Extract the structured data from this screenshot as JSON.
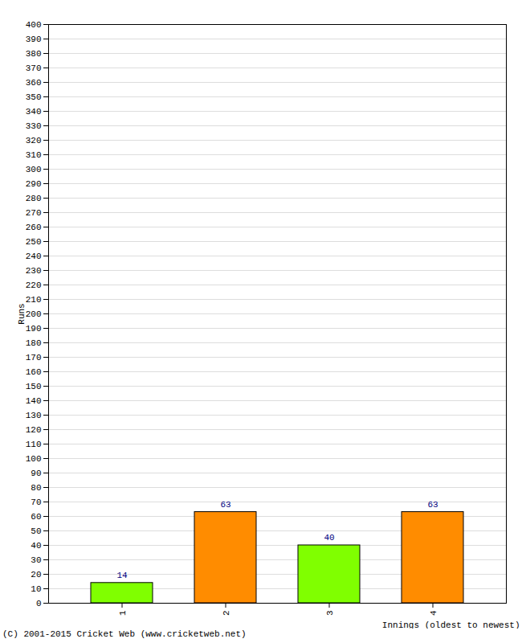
{
  "chart_data": {
    "type": "bar",
    "categories": [
      "1",
      "2",
      "3",
      "4"
    ],
    "values": [
      14,
      63,
      40,
      63
    ],
    "colors": [
      "#80ff00",
      "#ff8c00",
      "#80ff00",
      "#ff8c00"
    ],
    "x_label": "Innings (oldest to newest)",
    "y_label": "Runs",
    "caption": "(C) 2001-2015 Cricket Web (www.cricketweb.net)",
    "ylim": [
      0,
      400
    ],
    "yticks": [
      0,
      10,
      20,
      30,
      40,
      50,
      60,
      70,
      80,
      90,
      100,
      110,
      120,
      130,
      140,
      150,
      160,
      170,
      180,
      190,
      200,
      210,
      220,
      230,
      240,
      250,
      260,
      270,
      280,
      290,
      300,
      310,
      320,
      330,
      340,
      350,
      360,
      370,
      380,
      390,
      400
    ],
    "grid": true,
    "data_labels": true
  }
}
